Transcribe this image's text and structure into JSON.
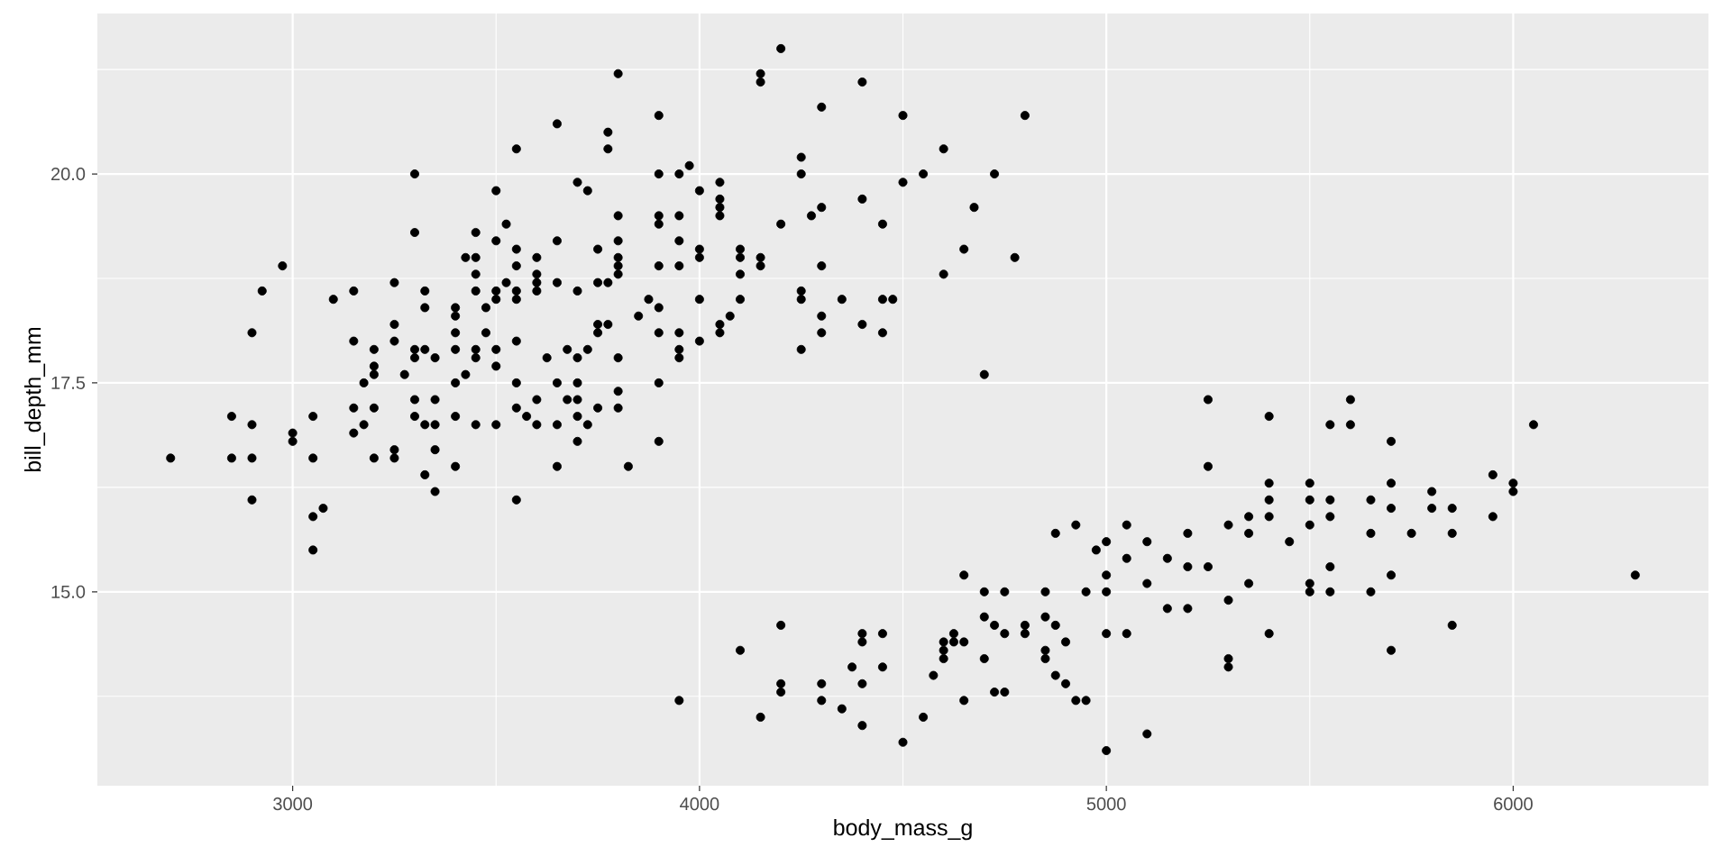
{
  "chart_data": {
    "type": "scatter",
    "xlabel": "body_mass_g",
    "ylabel": "bill_depth_mm",
    "color": "#000000",
    "marker": "circle",
    "grid": true,
    "xlim": [
      2520,
      6480
    ],
    "ylim": [
      12.68,
      21.92
    ],
    "xticks": [
      3000,
      4000,
      5000,
      6000
    ],
    "yticks": [
      {
        "value": 15,
        "label": "15.0"
      },
      {
        "value": 17.5,
        "label": "17.5"
      },
      {
        "value": 20,
        "label": "20.0"
      }
    ],
    "x": [
      2700,
      2850,
      2850,
      2900,
      2900,
      2900,
      2900,
      2925,
      2975,
      3000,
      3000,
      3050,
      3050,
      3050,
      3050,
      3075,
      3100,
      3150,
      3150,
      3150,
      3150,
      3175,
      3175,
      3200,
      3200,
      3200,
      3200,
      3200,
      3250,
      3250,
      3250,
      3250,
      3250,
      3275,
      3300,
      3300,
      3300,
      3300,
      3300,
      3300,
      3325,
      3325,
      3325,
      3325,
      3325,
      3350,
      3350,
      3350,
      3350,
      3350,
      3400,
      3400,
      3400,
      3400,
      3400,
      3400,
      3400,
      3425,
      3425,
      3450,
      3450,
      3450,
      3450,
      3450,
      3450,
      3450,
      3475,
      3475,
      3500,
      3500,
      3500,
      3500,
      3500,
      3500,
      3500,
      3525,
      3525,
      3550,
      3550,
      3550,
      3550,
      3550,
      3550,
      3550,
      3550,
      3550,
      3575,
      3600,
      3600,
      3600,
      3600,
      3600,
      3600,
      3625,
      3650,
      3650,
      3650,
      3650,
      3650,
      3650,
      3675,
      3675,
      3700,
      3700,
      3700,
      3700,
      3700,
      3700,
      3700,
      3725,
      3725,
      3725,
      3750,
      3750,
      3750,
      3750,
      3750,
      3775,
      3775,
      3775,
      3775,
      3800,
      3800,
      3800,
      3800,
      3800,
      3800,
      3800,
      3800,
      3800,
      3825,
      3850,
      3875,
      3900,
      3900,
      3900,
      3900,
      3900,
      3900,
      3900,
      3900,
      3900,
      3950,
      3950,
      3950,
      3950,
      3950,
      3950,
      3950,
      3950,
      3975,
      4000,
      4000,
      4000,
      4000,
      4000,
      4050,
      4050,
      4050,
      4050,
      4050,
      4050,
      4075,
      4100,
      4100,
      4100,
      4100,
      4150,
      4150,
      4150,
      4150,
      4200,
      4200,
      4250,
      4250,
      4250,
      4250,
      4250,
      4275,
      4300,
      4300,
      4300,
      4300,
      4300,
      4350,
      4400,
      4400,
      4400,
      4450,
      4450,
      4450,
      4475,
      4500,
      4500,
      4550,
      4600,
      4600,
      4650,
      4675,
      4700,
      4725,
      4775,
      4800,
      4100,
      4150,
      4200,
      4200,
      4200,
      4300,
      4300,
      4350,
      4375,
      4400,
      4400,
      4400,
      4400,
      4450,
      4450,
      4500,
      4550,
      4575,
      4600,
      4600,
      4600,
      4625,
      4625,
      4650,
      4650,
      4650,
      4700,
      4700,
      4700,
      4725,
      4725,
      4750,
      4750,
      4750,
      4800,
      4800,
      4850,
      4850,
      4850,
      4850,
      4875,
      4875,
      4875,
      4900,
      4900,
      4925,
      4925,
      4950,
      4950,
      4975,
      5000,
      5000,
      5000,
      5000,
      5000,
      5050,
      5050,
      5050,
      5100,
      5100,
      5100,
      5150,
      5150,
      5200,
      5200,
      5200,
      5250,
      5250,
      5250,
      5300,
      5300,
      5300,
      5300,
      5350,
      5350,
      5350,
      5400,
      5400,
      5400,
      5400,
      5400,
      5450,
      5500,
      5500,
      5500,
      5500,
      5500,
      5550,
      5550,
      5550,
      5550,
      5550,
      5600,
      5600,
      5650,
      5650,
      5650,
      5700,
      5700,
      5700,
      5700,
      5700,
      5750,
      5800,
      5800,
      5850,
      5850,
      5850,
      5950,
      5950,
      6000,
      6000,
      6050,
      6300
    ],
    "values": [
      16.6,
      17.1,
      16.6,
      18.1,
      17.0,
      16.6,
      16.1,
      18.6,
      18.9,
      16.9,
      16.8,
      17.1,
      16.6,
      15.9,
      15.5,
      16.0,
      18.5,
      18.6,
      18.0,
      17.2,
      16.9,
      17.5,
      17.0,
      17.9,
      17.7,
      17.6,
      17.2,
      16.6,
      18.7,
      18.2,
      18.0,
      16.7,
      16.6,
      17.6,
      20.0,
      19.3,
      17.9,
      17.8,
      17.3,
      17.1,
      18.6,
      18.4,
      17.9,
      17.0,
      16.4,
      17.8,
      17.3,
      17.0,
      16.7,
      16.2,
      18.4,
      18.3,
      18.1,
      17.9,
      17.5,
      17.1,
      16.5,
      19.0,
      17.6,
      19.3,
      19.0,
      18.8,
      18.6,
      17.9,
      17.8,
      17.0,
      18.4,
      18.1,
      19.8,
      19.2,
      18.6,
      18.5,
      17.9,
      17.7,
      17.0,
      19.4,
      18.7,
      20.3,
      19.1,
      18.9,
      18.6,
      18.5,
      18.0,
      17.5,
      17.2,
      16.1,
      17.1,
      19.0,
      18.8,
      18.7,
      18.6,
      17.3,
      17.0,
      17.8,
      20.6,
      19.2,
      18.7,
      17.5,
      17.0,
      16.5,
      17.9,
      17.3,
      19.9,
      18.6,
      17.8,
      17.5,
      17.3,
      17.1,
      16.8,
      19.8,
      17.9,
      17.0,
      19.1,
      18.7,
      18.2,
      18.1,
      17.2,
      20.5,
      20.3,
      18.7,
      18.2,
      21.2,
      19.5,
      19.2,
      19.0,
      18.9,
      18.8,
      17.8,
      17.4,
      17.2,
      16.5,
      18.3,
      18.5,
      20.7,
      20.0,
      19.5,
      19.4,
      18.9,
      18.4,
      18.1,
      17.5,
      16.8,
      20.0,
      19.5,
      19.2,
      18.9,
      18.1,
      17.9,
      17.8,
      13.7,
      20.1,
      19.8,
      19.1,
      19.0,
      18.5,
      18.0,
      19.9,
      19.7,
      19.6,
      19.5,
      18.2,
      18.1,
      18.3,
      19.1,
      19.0,
      18.8,
      18.5,
      21.2,
      21.1,
      19.0,
      18.9,
      21.5,
      19.4,
      20.2,
      20.0,
      18.6,
      18.5,
      17.9,
      19.5,
      20.8,
      19.6,
      18.9,
      18.3,
      18.1,
      18.5,
      21.1,
      19.7,
      18.2,
      19.4,
      18.5,
      18.1,
      18.5,
      20.7,
      19.9,
      20.0,
      20.3,
      18.8,
      19.1,
      19.6,
      17.6,
      20.0,
      19.0,
      20.7,
      14.3,
      13.5,
      14.6,
      13.9,
      13.8,
      13.9,
      13.7,
      13.6,
      14.1,
      14.5,
      14.4,
      13.9,
      13.4,
      14.5,
      14.1,
      13.2,
      13.5,
      14.0,
      14.4,
      14.3,
      14.2,
      14.5,
      14.4,
      15.2,
      14.4,
      13.7,
      15.0,
      14.7,
      14.2,
      14.6,
      13.8,
      15.0,
      14.5,
      13.8,
      14.6,
      14.5,
      15.0,
      14.7,
      14.3,
      14.2,
      15.7,
      14.6,
      14.0,
      14.4,
      13.9,
      15.8,
      13.7,
      15.0,
      13.7,
      15.5,
      15.6,
      15.2,
      15.0,
      14.5,
      13.1,
      15.8,
      15.4,
      14.5,
      15.6,
      15.1,
      13.3,
      15.4,
      14.8,
      15.7,
      15.3,
      14.8,
      17.3,
      16.5,
      15.3,
      15.8,
      14.9,
      14.2,
      14.1,
      15.9,
      15.7,
      15.1,
      17.1,
      16.3,
      16.1,
      15.9,
      14.5,
      15.6,
      16.3,
      16.1,
      15.8,
      15.1,
      15.0,
      17.0,
      16.1,
      15.9,
      15.3,
      15.0,
      17.3,
      17.0,
      16.1,
      15.7,
      15.0,
      16.8,
      16.3,
      16.0,
      15.2,
      14.3,
      15.7,
      16.2,
      16.0,
      16.0,
      15.7,
      14.6,
      16.4,
      15.9,
      16.3,
      16.2,
      17.0,
      15.2
    ]
  }
}
